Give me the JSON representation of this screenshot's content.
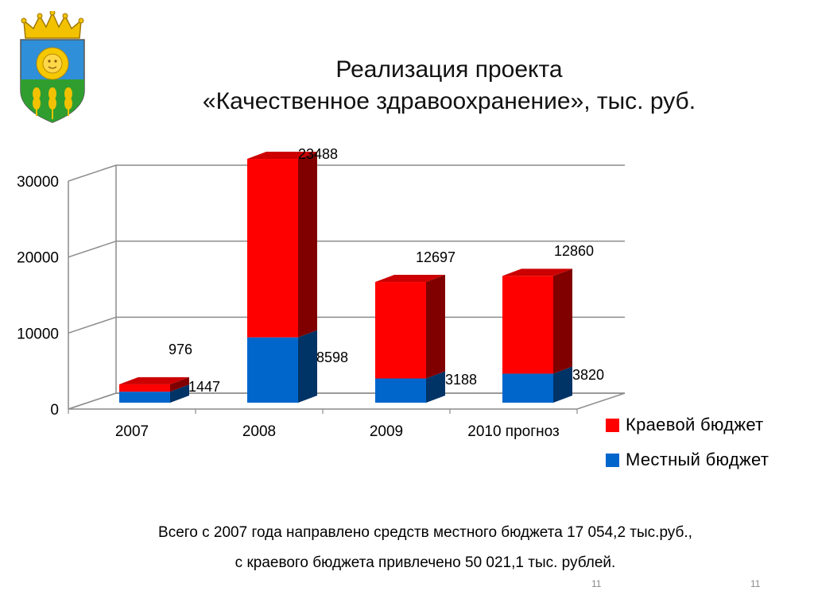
{
  "slide": {
    "title_line1": "Реализация проекта",
    "title_line2": "«Качественное здравоохранение», тыс. руб.",
    "summary_line1": "Всего с 2007 года направлено средств местного бюджета 17 054,2 тыс.руб.,",
    "summary_line2": "с краевого бюджета привлечено 50 021,1 тыс. рублей.",
    "page_number_left": "11",
    "page_number_right": "11",
    "emblem_icon": "coat-of-arms-icon"
  },
  "chart_data": {
    "type": "bar",
    "stacked": true,
    "three_d": true,
    "categories": [
      "2007",
      "2008",
      "2009",
      "2010 прогноз"
    ],
    "series": [
      {
        "name": "Местный бюджет",
        "values": [
          1447,
          8598,
          3188,
          3820
        ],
        "color": "#0066CC",
        "side_color": "#003366"
      },
      {
        "name": "Краевой бюджет",
        "values": [
          976,
          23488,
          12697,
          12860
        ],
        "color": "#FF0000",
        "side_color": "#800000"
      }
    ],
    "y_ticks": [
      "0",
      "10000",
      "20000",
      "30000"
    ],
    "ylim": [
      0,
      30000
    ],
    "grid": true,
    "legend_position": "right"
  }
}
